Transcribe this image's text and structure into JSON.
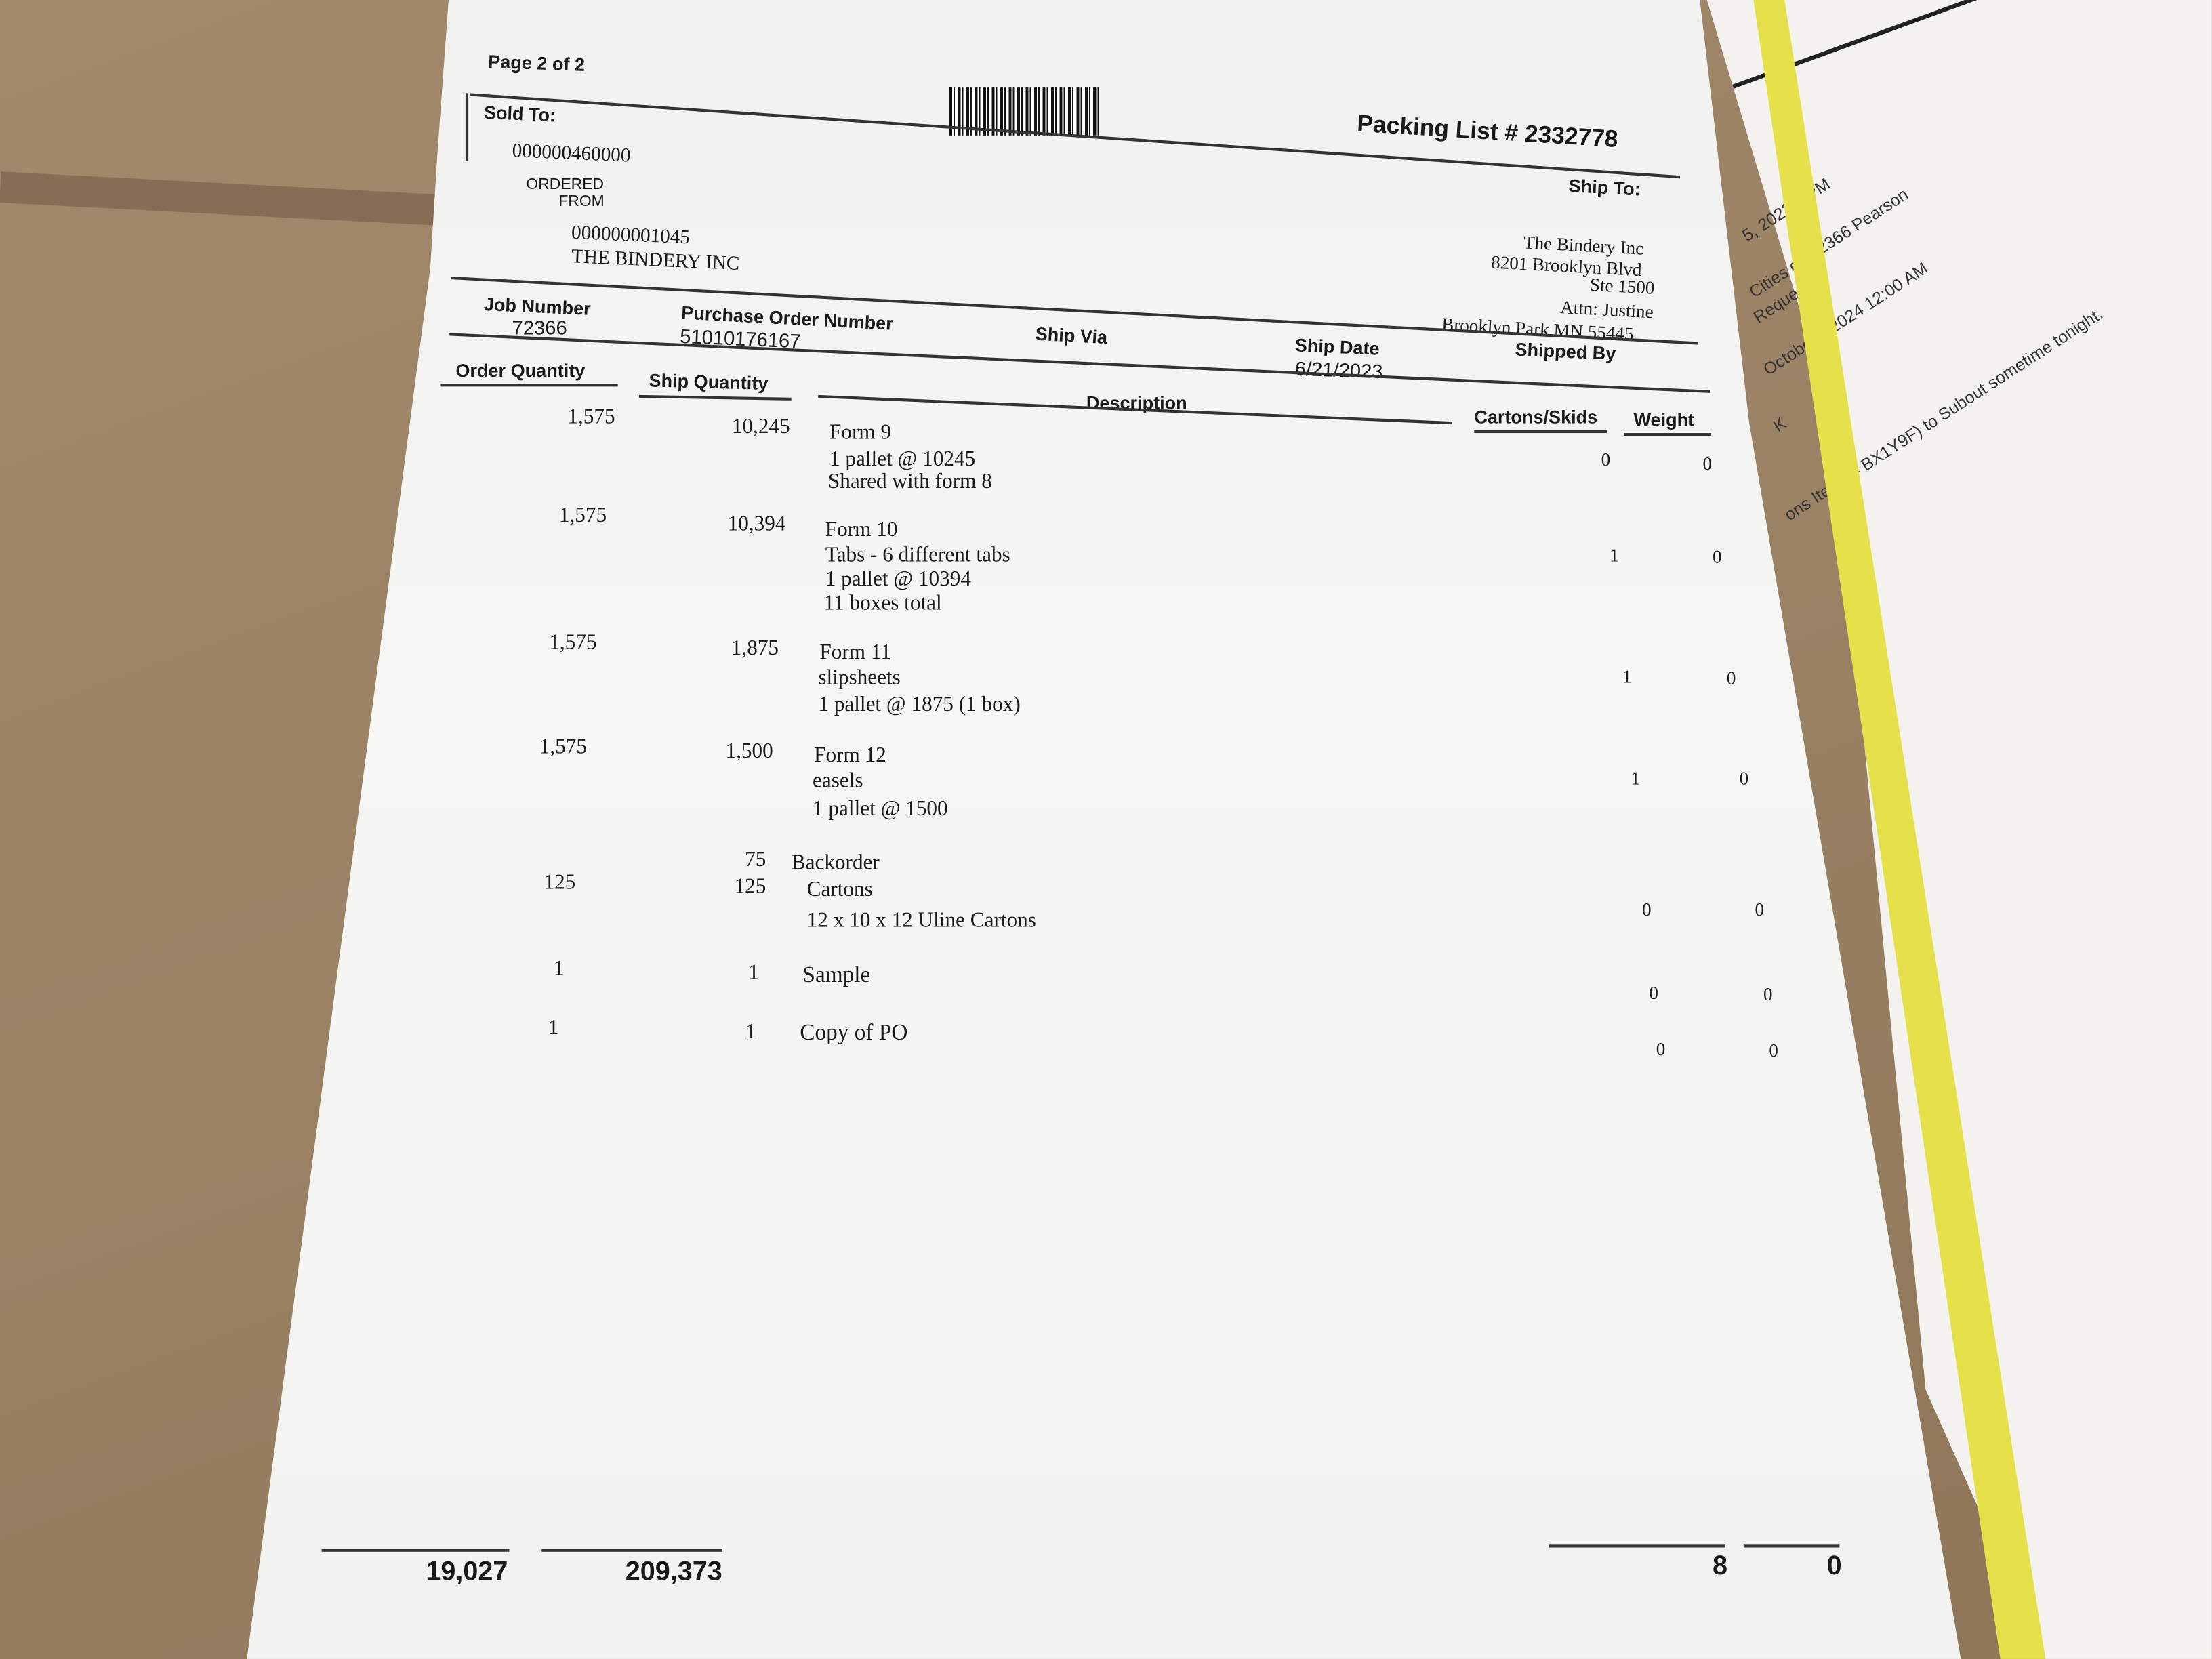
{
  "header": {
    "page": "Page 2 of 2",
    "title": "Packing List # 2332778",
    "sold_to_label": "Sold To:",
    "sold_to_id": "000000460000",
    "ordered_from_label_1": "ORDERED",
    "ordered_from_label_2": "FROM",
    "ordered_from_id": "000000001045",
    "ordered_from_name": "THE BINDERY INC",
    "ship_to_label": "Ship To:",
    "ship_to_lines": [
      "The Bindery Inc",
      "8201 Brooklyn Blvd",
      "Ste 1500",
      "Attn: Justine",
      "Brooklyn Park MN  55445"
    ]
  },
  "info": {
    "job_number_label": "Job Number",
    "job_number": "72366",
    "po_label": "Purchase Order Number",
    "po": "51010176167",
    "ship_via_label": "Ship Via",
    "ship_date_label": "Ship Date",
    "ship_date": "6/21/2023",
    "shipped_by_label": "Shipped By"
  },
  "columns": {
    "order_qty": "Order Quantity",
    "ship_qty": "Ship Quantity",
    "description": "Description",
    "cartons": "Cartons/Skids",
    "weight": "Weight"
  },
  "rows": [
    {
      "order": "1,575",
      "ship": "10,245",
      "desc": [
        "Form 9",
        "1 pallet @ 10245",
        "Shared with form 8"
      ],
      "cartons": "0",
      "weight": "0"
    },
    {
      "order": "1,575",
      "ship": "10,394",
      "desc": [
        "Form 10",
        "Tabs - 6 different tabs",
        "1 pallet @ 10394",
        "11 boxes total"
      ],
      "cartons": "1",
      "weight": "0"
    },
    {
      "order": "1,575",
      "ship": "1,875",
      "desc": [
        "Form 11",
        "slipsheets",
        "1 pallet @ 1875 (1 box)"
      ],
      "cartons": "1",
      "weight": "0"
    },
    {
      "order": "1,575",
      "ship": "1,500",
      "desc": [
        "Form 12",
        "easels",
        "1 pallet @ 1500"
      ],
      "cartons": "1",
      "weight": "0"
    },
    {
      "order": "125",
      "ship": "125",
      "backorder_qty": "75",
      "backorder_label": "Backorder",
      "desc": [
        "Cartons",
        "12 x 10 x 12 Uline Cartons"
      ],
      "cartons": "0",
      "weight": "0"
    },
    {
      "order": "1",
      "ship": "1",
      "desc": [
        "Sample"
      ],
      "cartons": "0",
      "weight": "0"
    },
    {
      "order": "1",
      "ship": "1",
      "desc": [
        "Copy of PO"
      ],
      "cartons": "0",
      "weight": "0"
    }
  ],
  "totals": {
    "order": "19,027",
    "ship": "209,373",
    "cartons": "8",
    "weight": "0"
  },
  "underlying_sheet": {
    "lines": [
      "5, 2023    8 PM",
      "Cities    ob 72366 Pearson",
      "Reques",
      "Octobe    1, 2024 12:00 AM",
      "K",
      "ons Ite    S (# BX1Y9F) to Subout sometime tonight."
    ]
  },
  "colors": {
    "strap": "#e6e04a",
    "cardboard": "#9c8468",
    "paper": "#f4f4f2"
  }
}
